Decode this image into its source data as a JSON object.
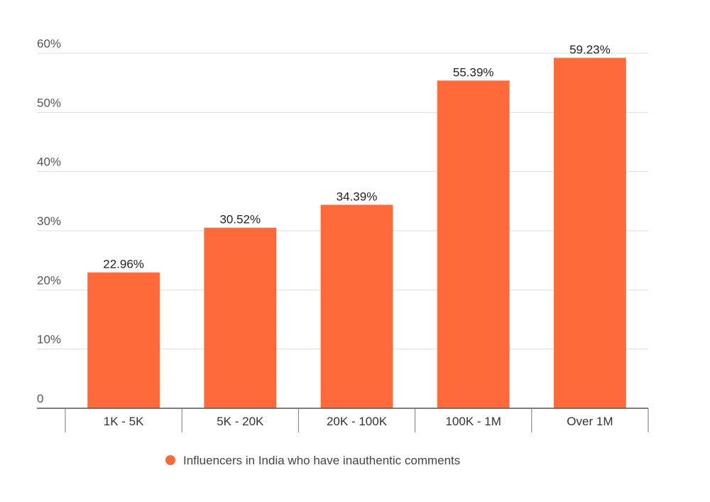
{
  "chart_data": {
    "type": "bar",
    "categories": [
      "1K - 5K",
      "5K - 20K",
      "20K - 100K",
      "100K - 1M",
      "Over 1M"
    ],
    "series": [
      {
        "name": "Influencers in India who have inauthentic comments",
        "values": [
          22.96,
          30.52,
          34.39,
          55.39,
          59.23
        ],
        "labels": [
          "22.96%",
          "30.52%",
          "34.39%",
          "55.39%",
          "59.23%"
        ],
        "color": "#ff6a3a"
      }
    ],
    "ylim": [
      0,
      60
    ],
    "yticks": [
      0,
      10,
      20,
      30,
      40,
      50,
      60
    ],
    "ytick_labels": [
      "0",
      "10%",
      "20%",
      "30%",
      "40%",
      "50%",
      "60%"
    ],
    "grid": true,
    "legend": "bottom-center"
  }
}
